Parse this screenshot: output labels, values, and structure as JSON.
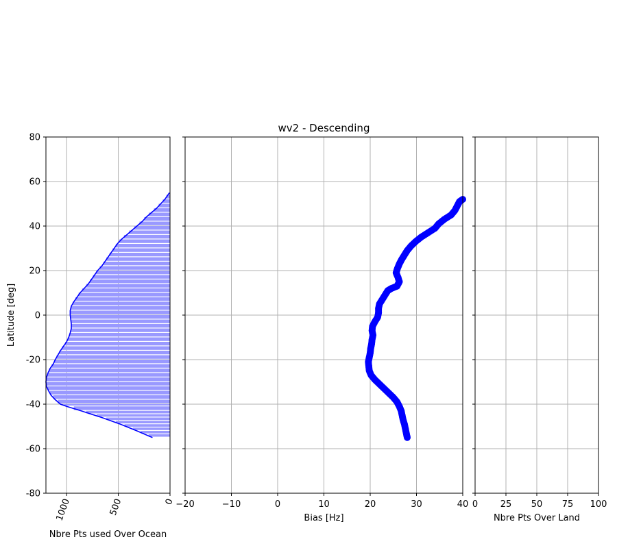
{
  "chart_data": [
    {
      "type": "area",
      "xlabel": "Nbre Pts used Over Ocean",
      "ylabel": "Latitude [deg]",
      "xlim": [
        1200,
        0
      ],
      "ylim": [
        -80,
        80
      ],
      "xticks": [
        1000,
        500,
        0
      ],
      "yticks": [
        -80,
        -60,
        -40,
        -20,
        0,
        20,
        40,
        60,
        80
      ],
      "grid": true,
      "color": "#0000ff",
      "fill_color": "#9999ff",
      "points": [
        {
          "lat": -55,
          "count": 170
        },
        {
          "lat": -52,
          "count": 320
        },
        {
          "lat": -49,
          "count": 480
        },
        {
          "lat": -46,
          "count": 660
        },
        {
          "lat": -43,
          "count": 860
        },
        {
          "lat": -41,
          "count": 1000
        },
        {
          "lat": -40,
          "count": 1060
        },
        {
          "lat": -38,
          "count": 1110
        },
        {
          "lat": -36,
          "count": 1150
        },
        {
          "lat": -34,
          "count": 1175
        },
        {
          "lat": -32,
          "count": 1195
        },
        {
          "lat": -30,
          "count": 1200
        },
        {
          "lat": -28,
          "count": 1195
        },
        {
          "lat": -26,
          "count": 1180
        },
        {
          "lat": -24,
          "count": 1160
        },
        {
          "lat": -22,
          "count": 1130
        },
        {
          "lat": -20,
          "count": 1110
        },
        {
          "lat": -18,
          "count": 1085
        },
        {
          "lat": -16,
          "count": 1060
        },
        {
          "lat": -14,
          "count": 1030
        },
        {
          "lat": -12,
          "count": 1000
        },
        {
          "lat": -10,
          "count": 980
        },
        {
          "lat": -8,
          "count": 965
        },
        {
          "lat": -6,
          "count": 955
        },
        {
          "lat": -4,
          "count": 955
        },
        {
          "lat": -2,
          "count": 960
        },
        {
          "lat": 0,
          "count": 965
        },
        {
          "lat": 2,
          "count": 965
        },
        {
          "lat": 4,
          "count": 955
        },
        {
          "lat": 6,
          "count": 930
        },
        {
          "lat": 8,
          "count": 900
        },
        {
          "lat": 10,
          "count": 870
        },
        {
          "lat": 12,
          "count": 830
        },
        {
          "lat": 14,
          "count": 790
        },
        {
          "lat": 16,
          "count": 760
        },
        {
          "lat": 18,
          "count": 730
        },
        {
          "lat": 20,
          "count": 700
        },
        {
          "lat": 22,
          "count": 660
        },
        {
          "lat": 24,
          "count": 630
        },
        {
          "lat": 26,
          "count": 600
        },
        {
          "lat": 28,
          "count": 570
        },
        {
          "lat": 30,
          "count": 540
        },
        {
          "lat": 32,
          "count": 510
        },
        {
          "lat": 34,
          "count": 470
        },
        {
          "lat": 36,
          "count": 420
        },
        {
          "lat": 38,
          "count": 370
        },
        {
          "lat": 40,
          "count": 320
        },
        {
          "lat": 42,
          "count": 270
        },
        {
          "lat": 44,
          "count": 230
        },
        {
          "lat": 46,
          "count": 180
        },
        {
          "lat": 48,
          "count": 130
        },
        {
          "lat": 50,
          "count": 90
        },
        {
          "lat": 52,
          "count": 50
        },
        {
          "lat": 54,
          "count": 20
        },
        {
          "lat": 55,
          "count": 5
        }
      ]
    },
    {
      "type": "scatter",
      "title": "wv2 - Descending",
      "xlabel": "Bias [Hz]",
      "ylabel": "",
      "xlim": [
        -20,
        40
      ],
      "ylim": [
        -80,
        80
      ],
      "xticks": [
        -20,
        -10,
        0,
        10,
        20,
        30,
        40
      ],
      "yticks": [
        -80,
        -60,
        -40,
        -20,
        0,
        20,
        40,
        60,
        80
      ],
      "grid": true,
      "color": "#0000ff",
      "points": [
        {
          "lat": -55,
          "bias": 28.0
        },
        {
          "lat": -53,
          "bias": 27.8
        },
        {
          "lat": -51,
          "bias": 27.6
        },
        {
          "lat": -49,
          "bias": 27.4
        },
        {
          "lat": -47,
          "bias": 27.1
        },
        {
          "lat": -45,
          "bias": 26.9
        },
        {
          "lat": -43,
          "bias": 26.7
        },
        {
          "lat": -41,
          "bias": 26.3
        },
        {
          "lat": -39,
          "bias": 25.8
        },
        {
          "lat": -37,
          "bias": 25.0
        },
        {
          "lat": -35,
          "bias": 24.0
        },
        {
          "lat": -33,
          "bias": 23.0
        },
        {
          "lat": -31,
          "bias": 22.0
        },
        {
          "lat": -29,
          "bias": 21.0
        },
        {
          "lat": -27,
          "bias": 20.2
        },
        {
          "lat": -25,
          "bias": 19.8
        },
        {
          "lat": -23,
          "bias": 19.7
        },
        {
          "lat": -21,
          "bias": 19.6
        },
        {
          "lat": -19,
          "bias": 19.8
        },
        {
          "lat": -17,
          "bias": 20.0
        },
        {
          "lat": -15,
          "bias": 20.1
        },
        {
          "lat": -13,
          "bias": 20.3
        },
        {
          "lat": -11,
          "bias": 20.4
        },
        {
          "lat": -9,
          "bias": 20.6
        },
        {
          "lat": -7,
          "bias": 20.4
        },
        {
          "lat": -5,
          "bias": 20.5
        },
        {
          "lat": -3,
          "bias": 21.0
        },
        {
          "lat": -1,
          "bias": 21.6
        },
        {
          "lat": 1,
          "bias": 21.8
        },
        {
          "lat": 3,
          "bias": 21.8
        },
        {
          "lat": 5,
          "bias": 22.0
        },
        {
          "lat": 7,
          "bias": 22.6
        },
        {
          "lat": 9,
          "bias": 23.2
        },
        {
          "lat": 11,
          "bias": 23.8
        },
        {
          "lat": 12,
          "bias": 24.6
        },
        {
          "lat": 13,
          "bias": 25.8
        },
        {
          "lat": 15,
          "bias": 26.3
        },
        {
          "lat": 17,
          "bias": 26.0
        },
        {
          "lat": 19,
          "bias": 25.6
        },
        {
          "lat": 21,
          "bias": 25.9
        },
        {
          "lat": 23,
          "bias": 26.3
        },
        {
          "lat": 25,
          "bias": 26.8
        },
        {
          "lat": 27,
          "bias": 27.4
        },
        {
          "lat": 29,
          "bias": 28.0
        },
        {
          "lat": 31,
          "bias": 28.8
        },
        {
          "lat": 33,
          "bias": 29.8
        },
        {
          "lat": 35,
          "bias": 31.0
        },
        {
          "lat": 37,
          "bias": 32.5
        },
        {
          "lat": 39,
          "bias": 34.0
        },
        {
          "lat": 41,
          "bias": 34.8
        },
        {
          "lat": 43,
          "bias": 36.0
        },
        {
          "lat": 45,
          "bias": 37.5
        },
        {
          "lat": 47,
          "bias": 38.3
        },
        {
          "lat": 49,
          "bias": 38.8
        },
        {
          "lat": 51,
          "bias": 39.3
        },
        {
          "lat": 52,
          "bias": 40.0
        }
      ]
    },
    {
      "type": "line",
      "xlabel": "Nbre Pts Over Land",
      "ylabel": "",
      "xlim": [
        0,
        100
      ],
      "ylim": [
        -80,
        80
      ],
      "xticks": [
        0,
        25,
        50,
        75,
        100
      ],
      "yticks": [
        -80,
        -60,
        -40,
        -20,
        0,
        20,
        40,
        60,
        80
      ],
      "grid": true,
      "points": []
    }
  ]
}
